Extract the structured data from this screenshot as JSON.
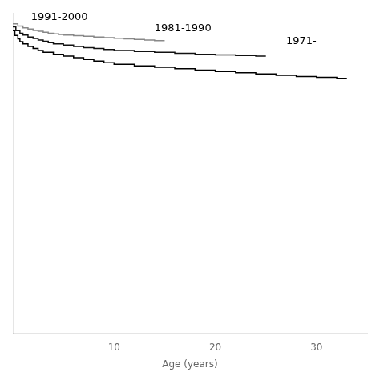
{
  "chart_data": {
    "type": "step",
    "xlabel": "Age (years)",
    "xlim": [
      0,
      35
    ],
    "ylim": [
      0.0,
      1.02
    ],
    "xticks": [
      10,
      20,
      30
    ],
    "tick_labels": "x",
    "grid": false,
    "series": [
      {
        "color": "#888888",
        "x": [
          0,
          0.5,
          0.5,
          1,
          1,
          1.5,
          1.5,
          2,
          2,
          2.5,
          2.5,
          3,
          3,
          3.5,
          3.5,
          4,
          4,
          4.5,
          4.5,
          5,
          5,
          6,
          6,
          7,
          7,
          8,
          8,
          9,
          9,
          10,
          10,
          11,
          11,
          12,
          12,
          13,
          13,
          14,
          14,
          15
        ],
        "values": [
          0.985,
          0.985,
          0.978,
          0.978,
          0.972,
          0.972,
          0.968,
          0.968,
          0.964,
          0.964,
          0.961,
          0.961,
          0.958,
          0.958,
          0.955,
          0.955,
          0.953,
          0.953,
          0.951,
          0.951,
          0.949,
          0.949,
          0.947,
          0.947,
          0.945,
          0.945,
          0.943,
          0.943,
          0.941,
          0.941,
          0.939,
          0.939,
          0.937,
          0.937,
          0.935,
          0.935,
          0.933,
          0.933,
          0.931,
          0.931
        ]
      },
      {
        "color": "#111111",
        "x": [
          0,
          0.3,
          0.3,
          0.7,
          0.7,
          1,
          1,
          1.5,
          1.5,
          2,
          2,
          2.5,
          2.5,
          3,
          3,
          3.5,
          3.5,
          4,
          4,
          5,
          5,
          6,
          6,
          7,
          7,
          8,
          8,
          9,
          9,
          10,
          10,
          12,
          12,
          14,
          14,
          16,
          16,
          18,
          18,
          20,
          20,
          22,
          22,
          24,
          24,
          25
        ],
        "values": [
          0.975,
          0.975,
          0.963,
          0.963,
          0.955,
          0.955,
          0.949,
          0.949,
          0.943,
          0.943,
          0.938,
          0.938,
          0.933,
          0.933,
          0.929,
          0.929,
          0.925,
          0.925,
          0.921,
          0.921,
          0.917,
          0.917,
          0.913,
          0.913,
          0.909,
          0.909,
          0.906,
          0.906,
          0.903,
          0.903,
          0.9,
          0.9,
          0.897,
          0.897,
          0.894,
          0.894,
          0.891,
          0.891,
          0.888,
          0.888,
          0.886,
          0.886,
          0.884,
          0.884,
          0.882,
          0.882
        ]
      },
      {
        "color": "#000000",
        "x": [
          0,
          0.2,
          0.2,
          0.5,
          0.5,
          0.7,
          0.7,
          1,
          1,
          1.5,
          1.5,
          2,
          2,
          2.5,
          2.5,
          3,
          3,
          4,
          4,
          5,
          5,
          6,
          6,
          7,
          7,
          8,
          8,
          9,
          9,
          10,
          10,
          12,
          12,
          14,
          14,
          16,
          16,
          18,
          18,
          20,
          20,
          22,
          22,
          24,
          24,
          26,
          26,
          28,
          28,
          30,
          30,
          32,
          32,
          33
        ],
        "values": [
          0.963,
          0.963,
          0.948,
          0.948,
          0.937,
          0.937,
          0.928,
          0.928,
          0.921,
          0.921,
          0.913,
          0.913,
          0.906,
          0.906,
          0.9,
          0.9,
          0.894,
          0.894,
          0.888,
          0.888,
          0.882,
          0.882,
          0.877,
          0.877,
          0.871,
          0.871,
          0.866,
          0.866,
          0.861,
          0.861,
          0.856,
          0.856,
          0.851,
          0.851,
          0.846,
          0.846,
          0.842,
          0.842,
          0.837,
          0.837,
          0.833,
          0.833,
          0.829,
          0.829,
          0.825,
          0.825,
          0.821,
          0.821,
          0.817,
          0.817,
          0.814,
          0.814,
          0.811,
          0.811
        ]
      }
    ],
    "annotations": [
      {
        "text": "1991-2000",
        "x": 1.8,
        "y": 0.988
      },
      {
        "text": "1981-1990",
        "x": 14,
        "y": 0.952
      },
      {
        "text": "1971-",
        "x": 27,
        "y": 0.912
      }
    ]
  }
}
